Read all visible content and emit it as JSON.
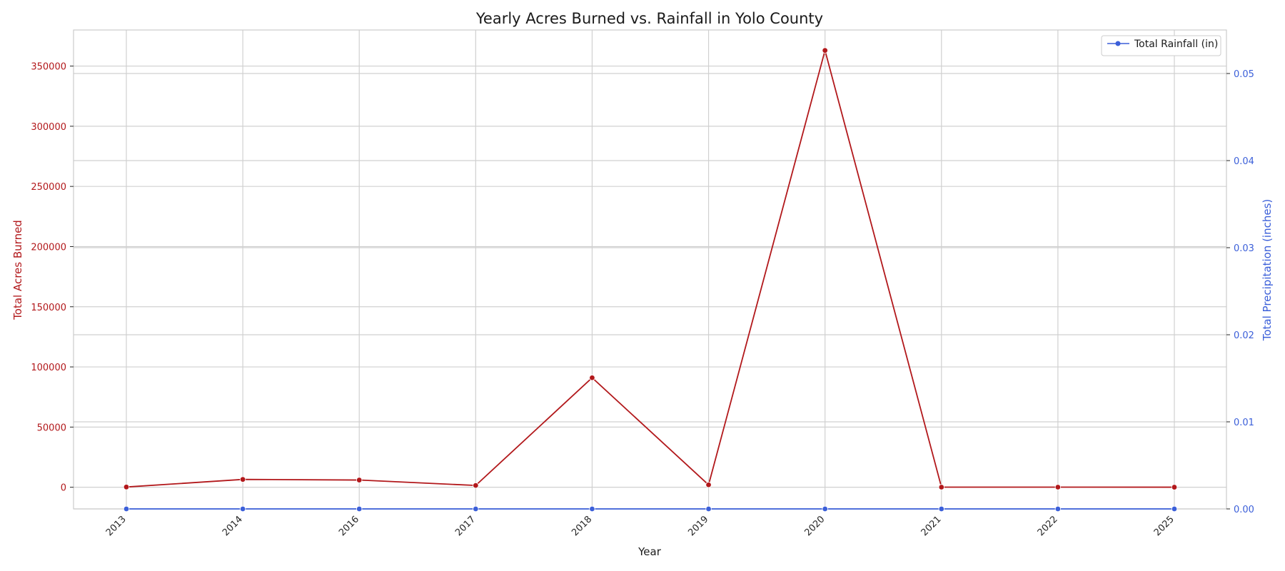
{
  "chart_data": {
    "type": "line",
    "title": "Yearly Acres Burned vs. Rainfall in Yolo County",
    "xlabel": "Year",
    "categories": [
      "2013",
      "2014",
      "2016",
      "2017",
      "2018",
      "2019",
      "2020",
      "2021",
      "2022",
      "2025"
    ],
    "left_axis": {
      "label": "Total Acres Burned",
      "ylim": [
        -18000,
        380000
      ],
      "ticks": [
        0,
        50000,
        100000,
        150000,
        200000,
        250000,
        300000,
        350000
      ],
      "color": "#b2181b"
    },
    "right_axis": {
      "label": "Total Precipitation (inches)",
      "ylim": [
        0,
        0.055
      ],
      "ticks": [
        "0.00",
        "0.01",
        "0.02",
        "0.03",
        "0.04",
        "0.05"
      ],
      "color": "#3b5fd9"
    },
    "series": [
      {
        "axis": "left",
        "color": "#b2181b",
        "values": [
          200,
          6500,
          6000,
          1500,
          91000,
          2000,
          363000,
          100,
          100,
          50
        ]
      },
      {
        "name": "Total Rainfall (in)",
        "axis": "right",
        "color": "#3b5fd9",
        "values": [
          0,
          0,
          0,
          0,
          0,
          0,
          0,
          0,
          0,
          0
        ]
      }
    ],
    "grid": true,
    "legend_position": "top-right"
  }
}
